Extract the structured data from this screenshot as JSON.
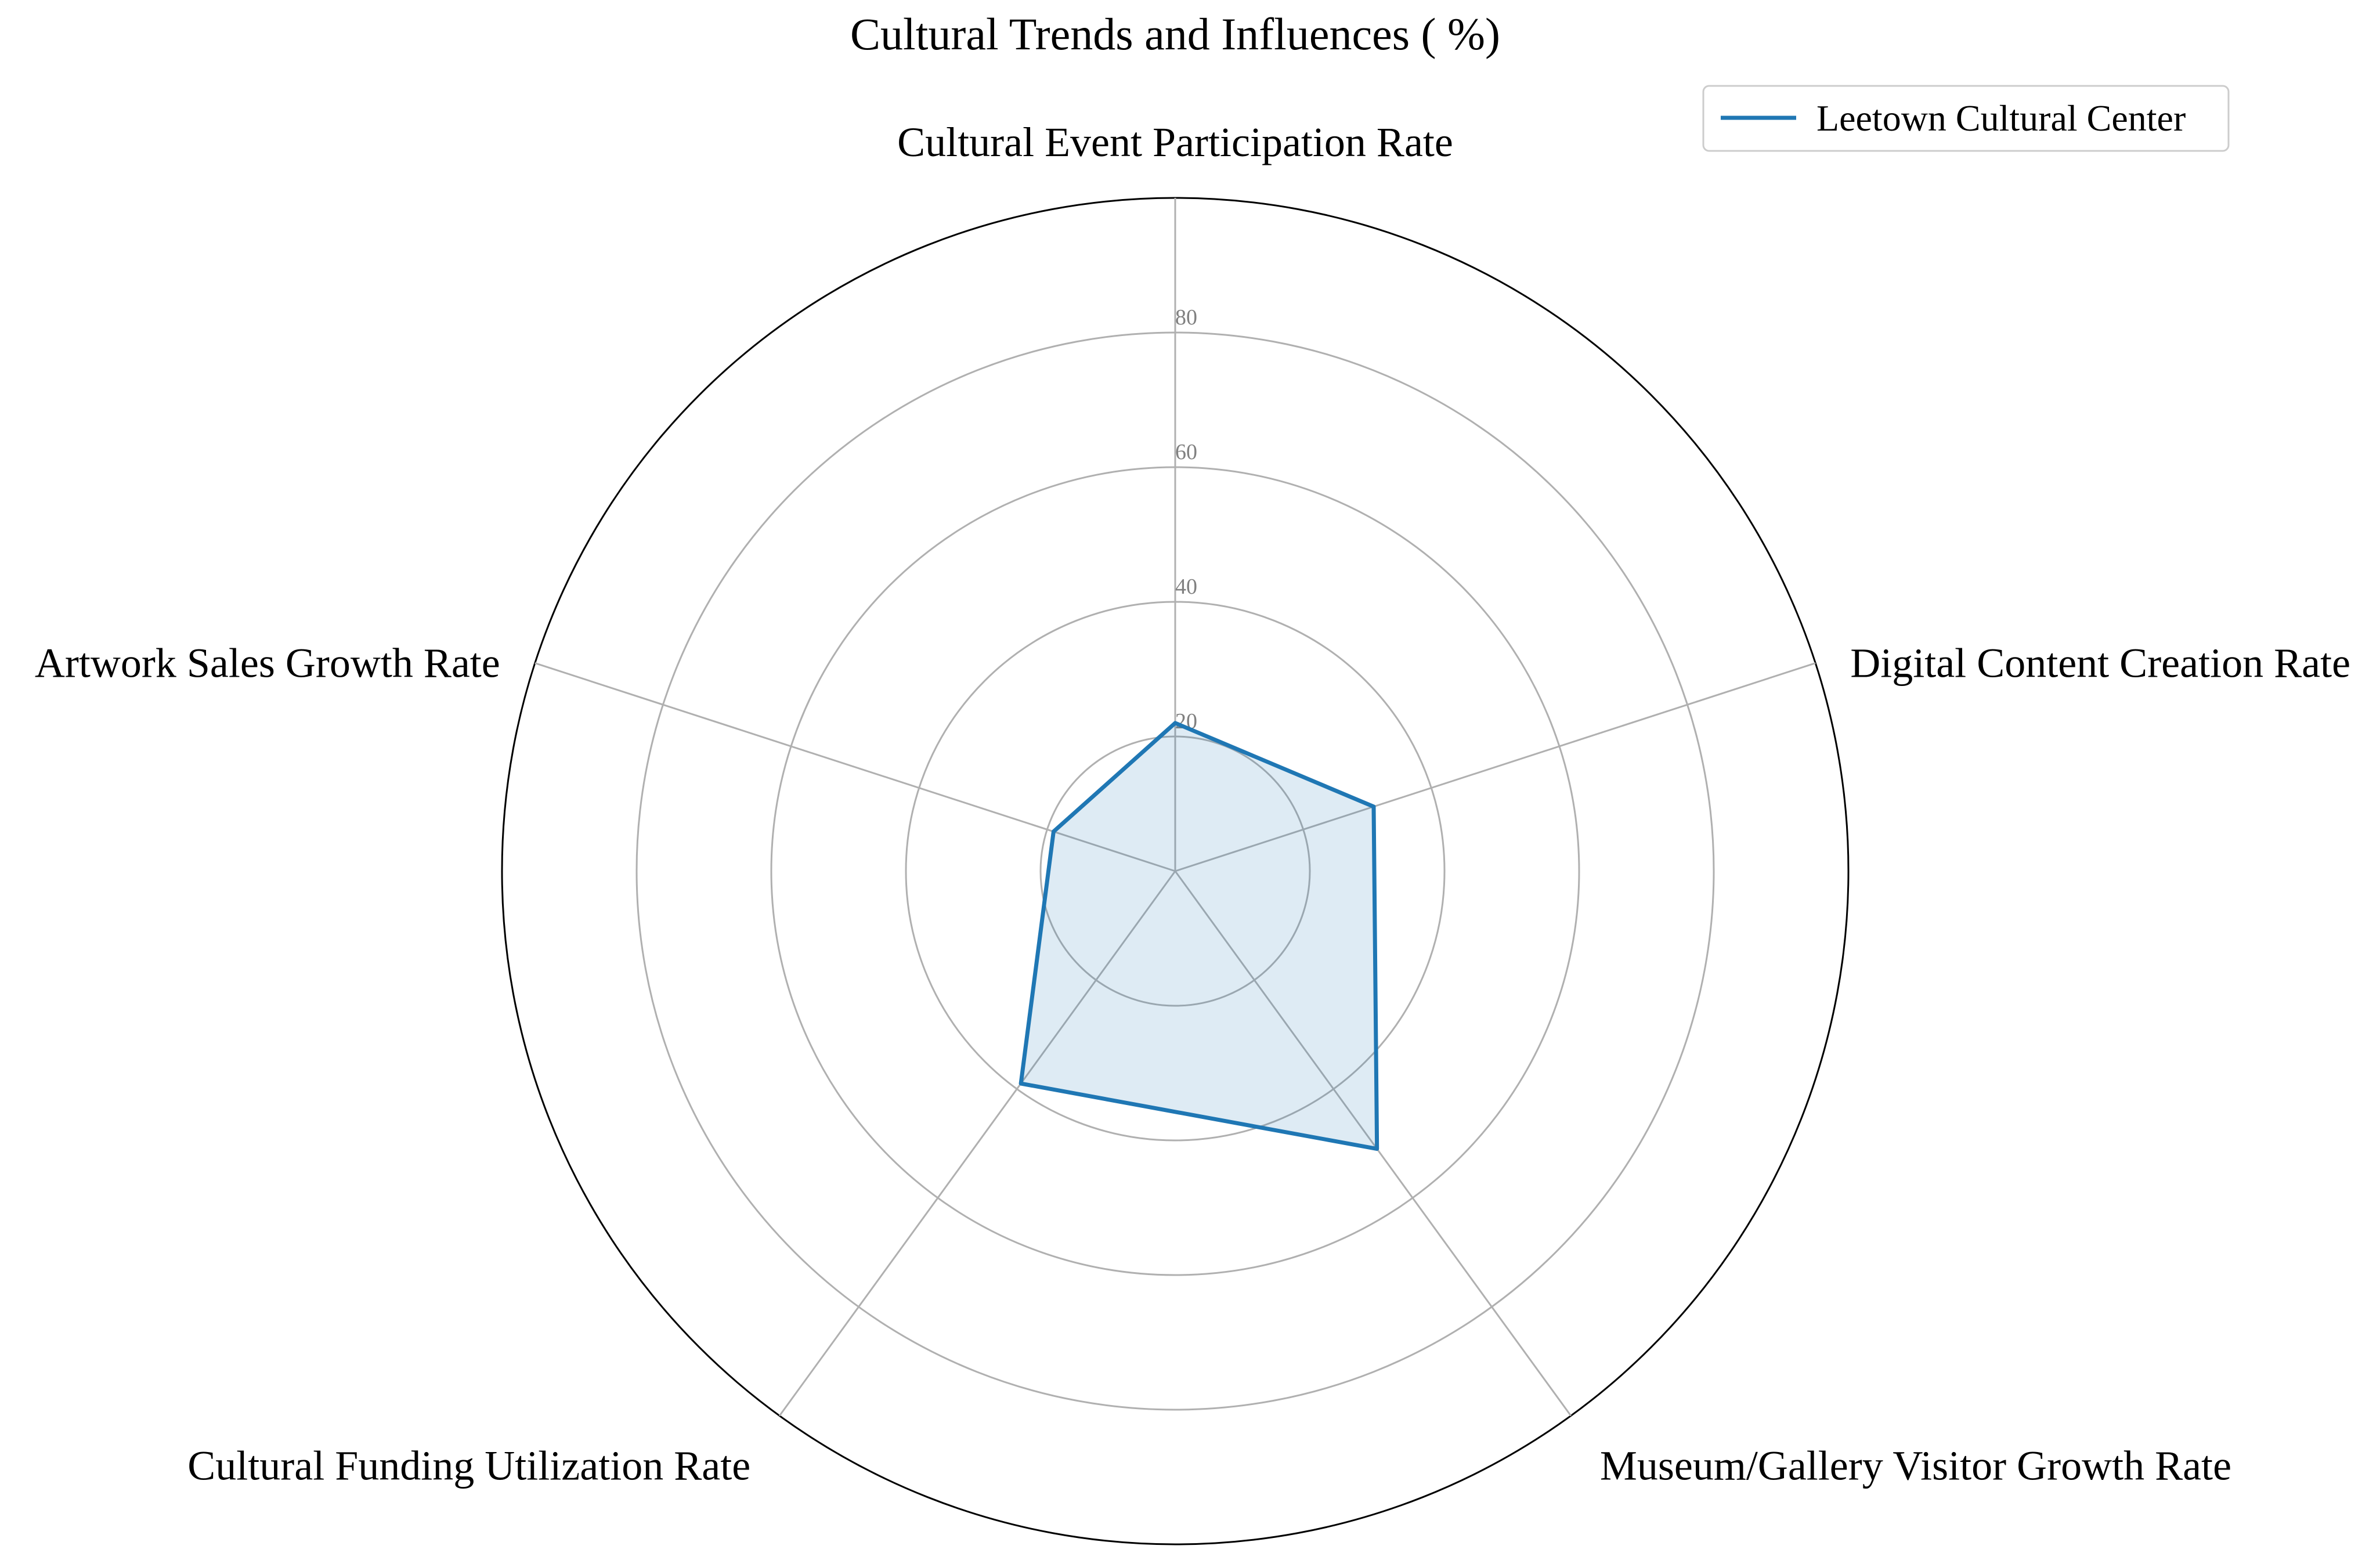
{
  "chart_data": {
    "type": "radar",
    "title": "Cultural Trends and Influences ( %)",
    "categories": [
      "Cultural Event Participation Rate",
      "Digital Content Creation Rate",
      "Museum/Gallery Visitor Growth Rate",
      "Cultural Funding Utilization Rate",
      "Artwork Sales Growth Rate"
    ],
    "series": [
      {
        "name": "Leetown Cultural Center",
        "values": [
          22,
          31,
          51,
          39,
          19
        ],
        "color": "#1f77b4"
      }
    ],
    "r_ticks": [
      20,
      40,
      60,
      80
    ],
    "r_max": 100,
    "grid": true,
    "legend_position": "top-right"
  }
}
